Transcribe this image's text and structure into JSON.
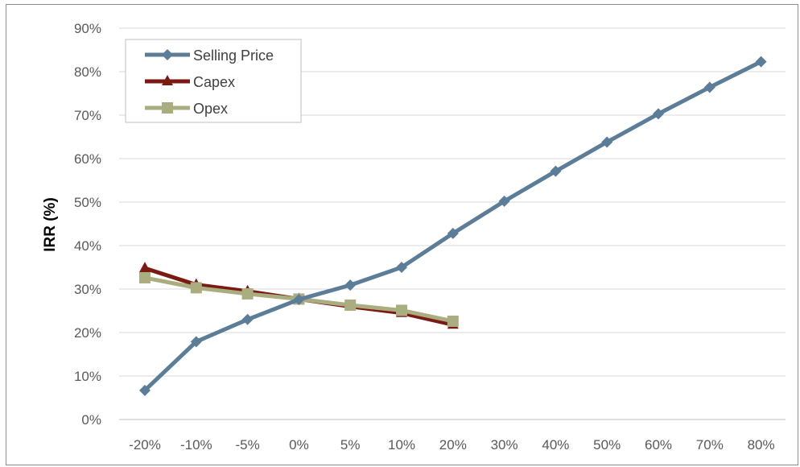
{
  "chart_data": {
    "type": "line",
    "title": "",
    "xlabel": "",
    "ylabel": "IRR (%)",
    "categories": [
      "-20%",
      "-10%",
      "-5%",
      "0%",
      "5%",
      "10%",
      "20%",
      "30%",
      "40%",
      "50%",
      "60%",
      "70%",
      "80%"
    ],
    "ylim": [
      0,
      90
    ],
    "yticks": [
      "0%",
      "10%",
      "20%",
      "30%",
      "40%",
      "50%",
      "60%",
      "70%",
      "80%",
      "90%"
    ],
    "grid": true,
    "legend_position": "top-left",
    "series": [
      {
        "name": "Selling Price",
        "color": "#5b7d98",
        "marker": "diamond",
        "values": [
          6.7,
          17.9,
          23.0,
          27.6,
          30.9,
          35.0,
          42.8,
          50.2,
          57.1,
          63.8,
          70.3,
          76.4,
          82.3
        ]
      },
      {
        "name": "Capex",
        "color": "#7b1a12",
        "marker": "triangle",
        "values": [
          34.8,
          31.0,
          29.5,
          27.7,
          26.0,
          24.5,
          21.8,
          null,
          null,
          null,
          null,
          null,
          null
        ]
      },
      {
        "name": "Opex",
        "color": "#a9ad80",
        "marker": "square",
        "values": [
          32.6,
          30.3,
          28.9,
          27.7,
          26.3,
          25.1,
          22.6,
          null,
          null,
          null,
          null,
          null,
          null
        ]
      }
    ]
  }
}
